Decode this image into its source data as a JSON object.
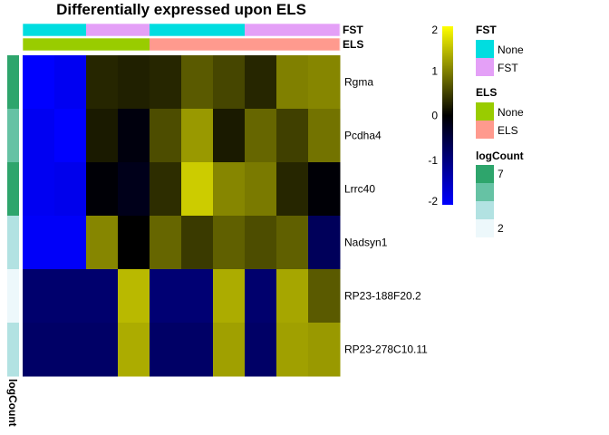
{
  "chart_data": {
    "type": "heatmap",
    "title": "Differentially expressed upon ELS",
    "rows": [
      "Rgma",
      "Pcdha4",
      "Lrrc40",
      "Nadsyn1",
      "RP23-188F20.2",
      "RP23-278C10.11"
    ],
    "values": [
      [
        -2.0,
        -1.9,
        0.3,
        0.25,
        0.3,
        0.7,
        0.55,
        0.3,
        1.0,
        1.05
      ],
      [
        -1.9,
        -2.0,
        0.2,
        -0.1,
        0.6,
        1.2,
        0.2,
        0.8,
        0.5,
        0.9
      ],
      [
        -1.9,
        -1.85,
        -0.05,
        -0.2,
        0.35,
        1.6,
        1.05,
        0.95,
        0.3,
        -0.05
      ],
      [
        -1.95,
        -1.95,
        1.05,
        0.0,
        0.8,
        0.45,
        0.75,
        0.6,
        0.75,
        -0.7
      ],
      [
        -0.85,
        -0.85,
        -0.85,
        1.45,
        -0.9,
        -0.9,
        1.35,
        -0.85,
        1.3,
        0.7
      ],
      [
        -0.8,
        -0.8,
        -0.8,
        1.35,
        -0.8,
        -0.8,
        1.25,
        -0.8,
        1.25,
        1.2
      ]
    ],
    "color_scale": {
      "min": -2,
      "max": 2,
      "stops": [
        {
          "value": -2,
          "color": "#0000ff"
        },
        {
          "value": -1,
          "color": "#000080"
        },
        {
          "value": 0,
          "color": "#000000"
        },
        {
          "value": 1,
          "color": "#808000"
        },
        {
          "value": 2,
          "color": "#ffff00"
        }
      ],
      "ticks": [
        "2",
        "1",
        "0",
        "-1",
        "-2"
      ],
      "tick_values": [
        2,
        1,
        0,
        -1,
        -2
      ]
    },
    "column_annotations": [
      {
        "name": "FST",
        "values": [
          "None",
          "None",
          "FST",
          "FST",
          "None",
          "None",
          "None",
          "FST",
          "FST",
          "FST"
        ]
      },
      {
        "name": "ELS",
        "values": [
          "None",
          "None",
          "None",
          "None",
          "ELS",
          "ELS",
          "ELS",
          "ELS",
          "ELS",
          "ELS"
        ]
      }
    ],
    "row_annotation": {
      "name": "logCount",
      "values": [
        7,
        6,
        7,
        3,
        2,
        3
      ]
    },
    "legends": {
      "FST": {
        "title": "FST",
        "items": [
          {
            "label": "None",
            "color": "#00dde0"
          },
          {
            "label": "FST",
            "color": "#e4a0f7"
          }
        ]
      },
      "ELS": {
        "title": "ELS",
        "items": [
          {
            "label": "None",
            "color": "#99cc00"
          },
          {
            "label": "ELS",
            "color": "#ff9a8e"
          }
        ]
      },
      "logCount": {
        "title": "logCount",
        "shown_labels": [
          "7",
          "2"
        ],
        "swatches": [
          {
            "value": 7,
            "color": "#2ea56c"
          },
          {
            "value": 6,
            "color": "#66c2a4"
          },
          {
            "value": 3,
            "color": "#b2e2e2"
          },
          {
            "value": 2,
            "color": "#edf8fb"
          }
        ]
      }
    }
  }
}
